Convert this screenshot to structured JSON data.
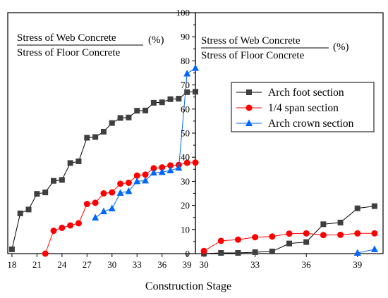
{
  "chart_data": {
    "type": "line",
    "xlabel": "Construction Stage",
    "ylim": [
      0,
      100
    ],
    "yticks": [
      0,
      10,
      20,
      30,
      40,
      50,
      60,
      70,
      80,
      90,
      100
    ],
    "y_axis_position": "center",
    "panels": [
      {
        "xlim": [
          17.5,
          40
        ],
        "xticks": [
          18,
          21,
          24,
          27,
          30,
          33,
          36,
          39
        ],
        "annotation": {
          "numerator": "Stress of Web Concrete",
          "denominator": "Stress of Floor Concrete",
          "unit": "(%)"
        }
      },
      {
        "xlim": [
          29.5,
          40.5
        ],
        "xticks": [
          30,
          33,
          36,
          39
        ],
        "annotation": {
          "numerator": "Stress of Web Concrete",
          "denominator": "Stress of Floor Concrete",
          "unit": "(%)"
        }
      }
    ],
    "series": [
      {
        "name": "Arch foot section",
        "marker": "square",
        "color": "#000000",
        "marker_color": "#3f3f3f",
        "segments": [
          {
            "panel": 0,
            "x": [
              18,
              19,
              20,
              21,
              22,
              23,
              24,
              25,
              26,
              27,
              28,
              29,
              30,
              31,
              32,
              33,
              34,
              35,
              36,
              37,
              38,
              39,
              40
            ],
            "y": [
              1.8,
              16.7,
              18.3,
              24.8,
              25.4,
              30.2,
              30.6,
              37.6,
              38.3,
              48.1,
              48.4,
              50.6,
              54.2,
              56.3,
              56.5,
              59.3,
              59.4,
              62.6,
              62.8,
              64.1,
              64.3,
              67.0,
              67.2
            ]
          },
          {
            "panel": 1,
            "x": [
              30,
              31,
              32,
              33,
              34,
              35,
              36,
              37,
              38,
              39,
              40
            ],
            "y": [
              0.0,
              0.3,
              0.3,
              0.6,
              0.9,
              4.2,
              4.8,
              12.2,
              12.9,
              18.8,
              19.7
            ]
          }
        ]
      },
      {
        "name": "1/4 span section",
        "marker": "circle",
        "color": "#ff0000",
        "marker_color": "#ff0000",
        "segments": [
          {
            "panel": 0,
            "x": [
              22,
              23,
              24,
              25,
              26,
              27,
              28,
              29,
              30,
              31,
              32,
              33,
              34,
              35,
              36,
              37,
              38,
              39,
              40
            ],
            "y": [
              0.0,
              9.5,
              10.7,
              11.7,
              12.6,
              20.6,
              21.1,
              25.0,
              25.4,
              29.0,
              29.4,
              32.4,
              32.8,
              35.4,
              35.8,
              36.6,
              36.8,
              37.7,
              37.8
            ]
          },
          {
            "panel": 1,
            "x": [
              30,
              31,
              32,
              33,
              34,
              35,
              36,
              37,
              38,
              39,
              40
            ],
            "y": [
              1.1,
              5.3,
              5.8,
              6.8,
              7.1,
              8.3,
              8.4,
              7.7,
              7.8,
              8.4,
              8.4
            ]
          }
        ]
      },
      {
        "name": "Arch crown section",
        "marker": "triangle",
        "color": "#0066ff",
        "marker_color": "#0066ff",
        "segments": [
          {
            "panel": 0,
            "x": [
              28,
              29,
              30,
              31,
              32,
              33,
              34,
              35,
              36,
              37,
              38,
              39,
              40
            ],
            "y": [
              14.9,
              17.5,
              18.7,
              25.2,
              25.9,
              30.0,
              30.3,
              33.6,
              33.8,
              34.5,
              35.6,
              74.7,
              77.0
            ]
          },
          {
            "panel": 1,
            "x": [
              39,
              40
            ],
            "y": [
              0.3,
              1.8
            ]
          }
        ]
      }
    ],
    "legend_position": "right, inside second panel"
  }
}
